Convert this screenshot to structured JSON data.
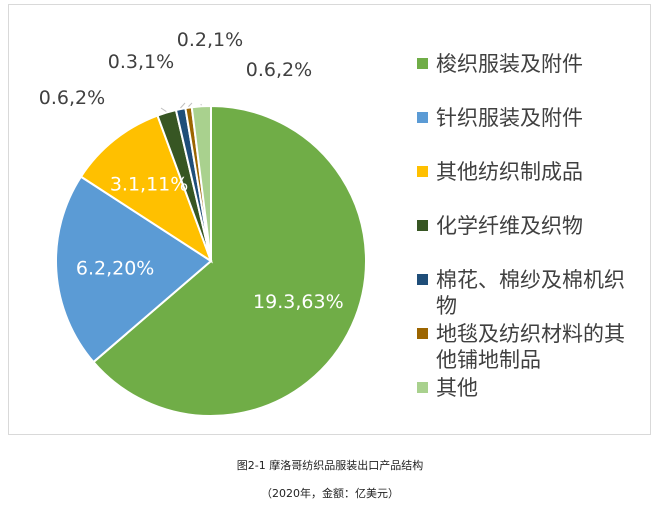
{
  "caption": {
    "title": "图2-1 摩洛哥纺织品服装出口产品结构",
    "subtitle": "（2020年，金额：亿美元）"
  },
  "chart_data": {
    "type": "pie",
    "slices": [
      {
        "name": "梭织服装及附件",
        "value": 19.3,
        "percent": 63,
        "label": "19.3,63%",
        "color": "#70ad47",
        "label_color": "#ffffff"
      },
      {
        "name": "针织服装及附件",
        "value": 6.2,
        "percent": 20,
        "label": "6.2,20%",
        "color": "#5b9bd5",
        "label_color": "#ffffff"
      },
      {
        "name": "其他纺织制成品",
        "value": 3.1,
        "percent": 11,
        "label": "3.1,11%",
        "color": "#ffc000",
        "label_color": "#ffffff"
      },
      {
        "name": "化学纤维及织物",
        "value": 0.6,
        "percent": 2,
        "label": "0.6,2%",
        "color": "#375623",
        "label_color": "#404040"
      },
      {
        "name": "棉花、棉纱及棉机织物",
        "value": 0.3,
        "percent": 1,
        "label": "0.3,1%",
        "color": "#1f4e79",
        "label_color": "#404040"
      },
      {
        "name": "地毯及纺织材料的其他铺地制品",
        "value": 0.2,
        "percent": 1,
        "label": "0.2,1%",
        "color": "#9c6500",
        "label_color": "#404040"
      },
      {
        "name": "其他",
        "value": 0.6,
        "percent": 2,
        "label": "0.6,2%",
        "color": "#a9d18e",
        "label_color": "#404040"
      }
    ],
    "legend": {
      "placement": "right",
      "entries": [
        {
          "text": "梭织服装及附件",
          "color": "#70ad47"
        },
        {
          "text": "针织服装及附件",
          "color": "#5b9bd5"
        },
        {
          "text": "其他纺织制成品",
          "color": "#ffc000"
        },
        {
          "text": "化学纤维及织物",
          "color": "#375623"
        },
        {
          "text": "棉花、棉纱及棉机织物",
          "color": "#1f4e79"
        },
        {
          "text": "地毯及纺织材料的其他铺地制品",
          "color": "#9c6500"
        },
        {
          "text": "其他",
          "color": "#a9d18e"
        }
      ]
    }
  }
}
